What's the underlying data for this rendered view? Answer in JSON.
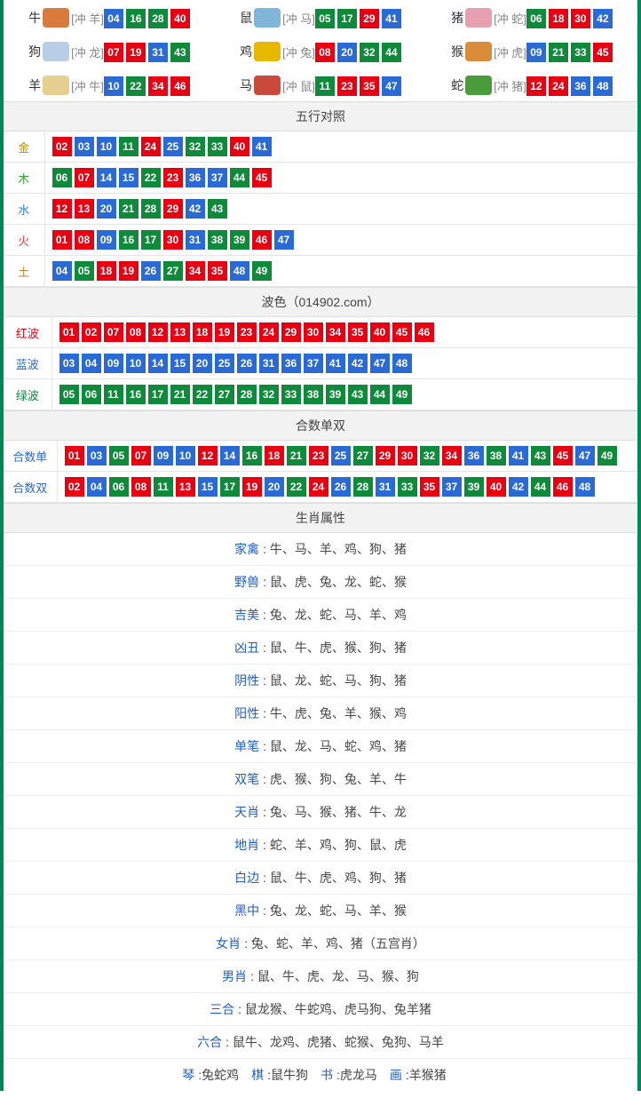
{
  "colors": {
    "red": "#e60012",
    "blue": "#2a6ad4",
    "green": "#0f8a3a",
    "gold": "#c98a00",
    "wood": "#36a12e",
    "water": "#2a7fd4",
    "fire": "#e63c3c",
    "earth": "#b58a3a",
    "redLabel": "#e60012",
    "blueLabel": "#2a6ad4",
    "greenLabel": "#0f8a3a"
  },
  "numColorMap": {
    "red": [
      "01",
      "02",
      "07",
      "08",
      "12",
      "13",
      "18",
      "19",
      "23",
      "24",
      "29",
      "30",
      "34",
      "35",
      "40",
      "45",
      "46"
    ],
    "blue": [
      "03",
      "04",
      "09",
      "10",
      "14",
      "15",
      "20",
      "25",
      "26",
      "31",
      "36",
      "37",
      "41",
      "42",
      "47",
      "48"
    ],
    "green": [
      "05",
      "06",
      "11",
      "16",
      "17",
      "21",
      "22",
      "27",
      "28",
      "32",
      "33",
      "38",
      "39",
      "43",
      "44",
      "49"
    ]
  },
  "zodiac": [
    {
      "name": "牛",
      "clash": "[冲 羊]",
      "icon": "#d97b3a",
      "nums": [
        "04",
        "16",
        "28",
        "40"
      ]
    },
    {
      "name": "鼠",
      "clash": "[冲 马]",
      "icon": "#7fb6d9",
      "nums": [
        "05",
        "17",
        "29",
        "41"
      ]
    },
    {
      "name": "猪",
      "clash": "[冲 蛇]",
      "icon": "#e6a0b0",
      "nums": [
        "06",
        "18",
        "30",
        "42"
      ]
    },
    {
      "name": "狗",
      "clash": "[冲 龙]",
      "icon": "#b8cde6",
      "nums": [
        "07",
        "19",
        "31",
        "43"
      ]
    },
    {
      "name": "鸡",
      "clash": "[冲 兔]",
      "icon": "#e6b800",
      "nums": [
        "08",
        "20",
        "32",
        "44"
      ]
    },
    {
      "name": "猴",
      "clash": "[冲 虎]",
      "icon": "#d98c3a",
      "nums": [
        "09",
        "21",
        "33",
        "45"
      ]
    },
    {
      "name": "羊",
      "clash": "[冲 牛]",
      "icon": "#e6d090",
      "nums": [
        "10",
        "22",
        "34",
        "46"
      ]
    },
    {
      "name": "马",
      "clash": "[冲 鼠]",
      "icon": "#c94a3a",
      "nums": [
        "11",
        "23",
        "35",
        "47"
      ]
    },
    {
      "name": "蛇",
      "clash": "[冲 猪]",
      "icon": "#4a9c3a",
      "nums": [
        "12",
        "24",
        "36",
        "48"
      ]
    }
  ],
  "wuxing": {
    "title": "五行对照",
    "rows": [
      {
        "label": "金",
        "color": "#c98a00",
        "nums": [
          "02",
          "03",
          "10",
          "11",
          "24",
          "25",
          "32",
          "33",
          "40",
          "41"
        ]
      },
      {
        "label": "木",
        "color": "#36a12e",
        "nums": [
          "06",
          "07",
          "14",
          "15",
          "22",
          "23",
          "36",
          "37",
          "44",
          "45"
        ]
      },
      {
        "label": "水",
        "color": "#2a7fd4",
        "nums": [
          "12",
          "13",
          "20",
          "21",
          "28",
          "29",
          "42",
          "43"
        ]
      },
      {
        "label": "火",
        "color": "#e63c3c",
        "nums": [
          "01",
          "08",
          "09",
          "16",
          "17",
          "30",
          "31",
          "38",
          "39",
          "46",
          "47"
        ]
      },
      {
        "label": "土",
        "color": "#b58a3a",
        "nums": [
          "04",
          "05",
          "18",
          "19",
          "26",
          "27",
          "34",
          "35",
          "48",
          "49"
        ]
      }
    ]
  },
  "bose": {
    "title": "波色（014902.com）",
    "rows": [
      {
        "label": "红波",
        "color": "#e60012",
        "nums": [
          "01",
          "02",
          "07",
          "08",
          "12",
          "13",
          "18",
          "19",
          "23",
          "24",
          "29",
          "30",
          "34",
          "35",
          "40",
          "45",
          "46"
        ]
      },
      {
        "label": "蓝波",
        "color": "#2a6ad4",
        "nums": [
          "03",
          "04",
          "09",
          "10",
          "14",
          "15",
          "20",
          "25",
          "26",
          "31",
          "36",
          "37",
          "41",
          "42",
          "47",
          "48"
        ]
      },
      {
        "label": "绿波",
        "color": "#0f8a3a",
        "nums": [
          "05",
          "06",
          "11",
          "16",
          "17",
          "21",
          "22",
          "27",
          "28",
          "32",
          "33",
          "38",
          "39",
          "43",
          "44",
          "49"
        ]
      }
    ]
  },
  "heshu": {
    "title": "合数单双",
    "rows": [
      {
        "label": "合数单",
        "color": "#2a6ad4",
        "nums": [
          "01",
          "03",
          "05",
          "07",
          "09",
          "10",
          "12",
          "14",
          "16",
          "18",
          "21",
          "23",
          "25",
          "27",
          "29",
          "30",
          "32",
          "34",
          "36",
          "38",
          "41",
          "43",
          "45",
          "47",
          "49"
        ]
      },
      {
        "label": "合数双",
        "color": "#2a6ad4",
        "nums": [
          "02",
          "04",
          "06",
          "08",
          "11",
          "13",
          "15",
          "17",
          "19",
          "20",
          "22",
          "24",
          "26",
          "28",
          "31",
          "33",
          "35",
          "37",
          "39",
          "40",
          "42",
          "44",
          "46",
          "48"
        ]
      }
    ]
  },
  "shuxing": {
    "title": "生肖属性",
    "rows": [
      {
        "label": "家禽",
        "sep": ": ",
        "val": "牛、马、羊、鸡、狗、猪"
      },
      {
        "label": "野兽",
        "sep": ": ",
        "val": "鼠、虎、兔、龙、蛇、猴"
      },
      {
        "label": "吉美",
        "sep": ": ",
        "val": "兔、龙、蛇、马、羊、鸡"
      },
      {
        "label": "凶丑",
        "sep": ": ",
        "val": "鼠、牛、虎、猴、狗、猪"
      },
      {
        "label": "阴性",
        "sep": ": ",
        "val": "鼠、龙、蛇、马、狗、猪"
      },
      {
        "label": "阳性",
        "sep": ": ",
        "val": "牛、虎、兔、羊、猴、鸡"
      },
      {
        "label": "单笔",
        "sep": ": ",
        "val": "鼠、龙、马、蛇、鸡、猪"
      },
      {
        "label": "双笔",
        "sep": ": ",
        "val": "虎、猴、狗、兔、羊、牛"
      },
      {
        "label": "天肖",
        "sep": ": ",
        "val": "兔、马、猴、猪、牛、龙"
      },
      {
        "label": "地肖",
        "sep": ": ",
        "val": "蛇、羊、鸡、狗、鼠、虎"
      },
      {
        "label": "白边",
        "sep": ": ",
        "val": "鼠、牛、虎、鸡、狗、猪"
      },
      {
        "label": "黑中",
        "sep": ": ",
        "val": "兔、龙、蛇、马、羊、猴"
      },
      {
        "label": "女肖",
        "sep": ": ",
        "val": "兔、蛇、羊、鸡、猪（五宫肖）"
      },
      {
        "label": "男肖",
        "sep": ": ",
        "val": "鼠、牛、虎、龙、马、猴、狗"
      },
      {
        "label": "三合",
        "sep": ": ",
        "val": "鼠龙猴、牛蛇鸡、虎马狗、兔羊猪"
      },
      {
        "label": "六合",
        "sep": ": ",
        "val": "鼠牛、龙鸡、虎猪、蛇猴、兔狗、马羊"
      }
    ]
  },
  "bottom": [
    {
      "label": "琴",
      "val": ":兔蛇鸡"
    },
    {
      "label": "棋",
      "val": ":鼠牛狗"
    },
    {
      "label": "书",
      "val": ":虎龙马"
    },
    {
      "label": "画",
      "val": ":羊猴猪"
    }
  ]
}
